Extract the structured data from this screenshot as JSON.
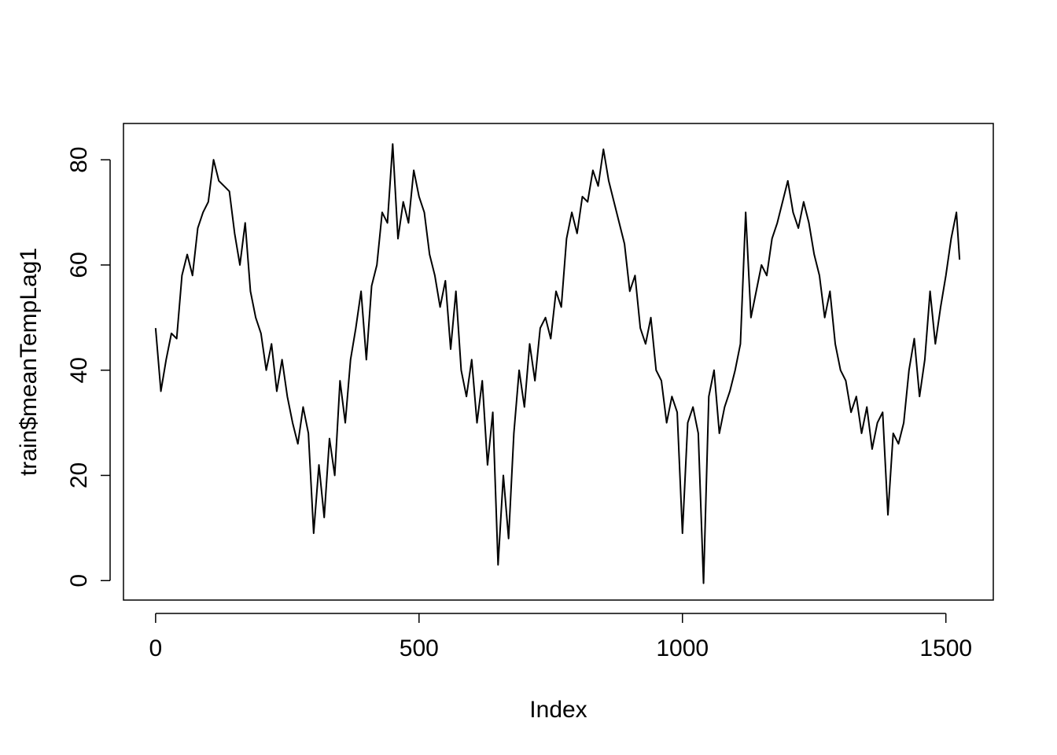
{
  "chart_data": {
    "type": "line",
    "x_label": "Index",
    "y_label": "train$meanTempLag1",
    "x": [
      0,
      10,
      20,
      30,
      40,
      50,
      60,
      70,
      80,
      90,
      100,
      110,
      120,
      130,
      140,
      150,
      160,
      170,
      180,
      190,
      200,
      210,
      220,
      230,
      240,
      250,
      260,
      270,
      280,
      290,
      300,
      310,
      320,
      330,
      340,
      350,
      360,
      370,
      380,
      390,
      400,
      410,
      420,
      430,
      440,
      450,
      460,
      470,
      480,
      490,
      500,
      510,
      520,
      530,
      540,
      550,
      560,
      570,
      580,
      590,
      600,
      610,
      620,
      630,
      640,
      650,
      660,
      670,
      680,
      690,
      700,
      710,
      720,
      730,
      740,
      750,
      760,
      770,
      780,
      790,
      800,
      810,
      820,
      830,
      840,
      850,
      860,
      870,
      880,
      890,
      900,
      910,
      920,
      930,
      940,
      950,
      960,
      970,
      980,
      990,
      1000,
      1010,
      1020,
      1030,
      1040,
      1050,
      1060,
      1070,
      1080,
      1090,
      1100,
      1110,
      1120,
      1130,
      1140,
      1150,
      1160,
      1170,
      1180,
      1190,
      1200,
      1210,
      1220,
      1230,
      1240,
      1250,
      1260,
      1270,
      1280,
      1290,
      1300,
      1310,
      1320,
      1330,
      1340,
      1350,
      1360,
      1370,
      1380,
      1390,
      1400,
      1410,
      1420,
      1430,
      1440,
      1450,
      1460,
      1470,
      1480,
      1490,
      1500,
      1510,
      1520,
      1526
    ],
    "series": [
      {
        "color": "#000000",
        "values": [
          48,
          36,
          42,
          47,
          46,
          58,
          62,
          58,
          67,
          70,
          72,
          80,
          76,
          75,
          74,
          66,
          60,
          68,
          55,
          50,
          47,
          40,
          45,
          36,
          42,
          35,
          30,
          26,
          33,
          28,
          9,
          22,
          12,
          27,
          20,
          38,
          30,
          42,
          48,
          55,
          42,
          56,
          60,
          70,
          68,
          83,
          65,
          72,
          68,
          78,
          73,
          70,
          62,
          58,
          52,
          57,
          44,
          55,
          40,
          35,
          42,
          30,
          38,
          22,
          32,
          3,
          20,
          8,
          28,
          40,
          33,
          45,
          38,
          48,
          50,
          46,
          55,
          52,
          65,
          70,
          66,
          73,
          72,
          78,
          75,
          82,
          76,
          72,
          68,
          64,
          55,
          58,
          48,
          45,
          50,
          40,
          38,
          30,
          35,
          32,
          9,
          30,
          33,
          28,
          -0.5,
          35,
          40,
          28,
          33,
          36,
          40,
          45,
          70,
          50,
          55,
          60,
          58,
          65,
          68,
          72,
          76,
          70,
          67,
          72,
          68,
          62,
          58,
          50,
          55,
          45,
          40,
          38,
          32,
          35,
          28,
          33,
          25,
          30,
          32,
          12.5,
          28,
          26,
          30,
          40,
          46,
          35,
          42,
          55,
          45,
          52,
          58,
          65,
          70,
          61
        ]
      }
    ],
    "xlim": [
      -61,
      1590
    ],
    "ylim": [
      -3.7,
      86.9
    ],
    "xticks": [
      0,
      500,
      1000,
      1500
    ],
    "yticks": [
      0,
      20,
      40,
      60,
      80
    ]
  }
}
